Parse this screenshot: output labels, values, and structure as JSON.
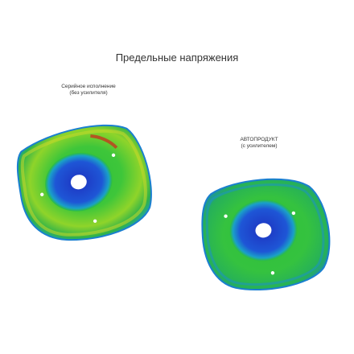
{
  "title": "Предельные напряжения",
  "left_part": {
    "line1": "Серийное исполнение",
    "line2": "(без усилителя)"
  },
  "right_part": {
    "line1": "АВТОПРОДУКТ",
    "line2": "(с усилителем)"
  },
  "colors": {
    "background": "#ffffff",
    "stress_low": "#1e3fc8",
    "stress_mid_low": "#1aa0c8",
    "stress_mid": "#2fbf3a",
    "stress_high": "#d9e21a",
    "stress_peak": "#d2231b"
  }
}
